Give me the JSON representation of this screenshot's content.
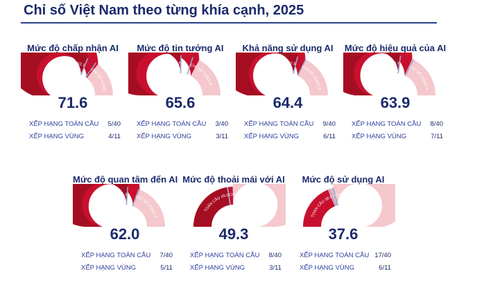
{
  "page_title": "Chỉ số Việt Nam theo từng khía cạnh, 2025",
  "colors": {
    "main": "#c8102e",
    "global": "#a50e22",
    "regional_light": "#f0b6bd",
    "remainder": "#f4c8cd",
    "text": "#1b2a6b",
    "marker": "#9aa3cf"
  },
  "chart_data": [
    {
      "type": "gauge",
      "title": "Mức độ chấp nhận AI",
      "value": 71.6,
      "global_index_label": "CHỈ SỐ TOÀN CẦU",
      "global_index": 62.1,
      "regional_index_label": "CHỈ SỐ VÙNG",
      "regional_index": 69.6,
      "global_rank_label": "XẾP HẠNG TOÀN CẦU",
      "global_rank": "5/40",
      "regional_rank_label": "XẾP HẠNG VÙNG",
      "regional_rank": "4/11",
      "ylim": [
        0,
        100
      ]
    },
    {
      "type": "gauge",
      "title": "Mức độ tin tưởng AI",
      "value": 65.6,
      "global_index_label": "CHỈ SỐ TOÀN CẦU",
      "global_index": 50.5,
      "regional_index_label": "CHỈ SỐ VÙNG",
      "regional_index": 60.1,
      "global_rank_label": "XẾP HẠNG TOÀN CẦU",
      "global_rank": "3/40",
      "regional_rank_label": "XẾP HẠNG VÙNG",
      "regional_rank": "3/11",
      "ylim": [
        0,
        100
      ]
    },
    {
      "type": "gauge",
      "title": "Khả năng sử dụng AI",
      "value": 64.4,
      "global_index_label": "CHỈ SỐ TOÀN CẦU",
      "global_index": 57.9,
      "regional_index_label": "CHỈ SỐ VÙNG",
      "regional_index": 64.7,
      "global_rank_label": "XẾP HẠNG TOÀN CẦU",
      "global_rank": "9/40",
      "regional_rank_label": "XẾP HẠNG VÙNG",
      "regional_rank": "6/11",
      "ylim": [
        0,
        100
      ]
    },
    {
      "type": "gauge",
      "title": "Mức độ hiệu quả của AI",
      "value": 63.9,
      "global_index_label": "CHỈ SỐ TOÀN CẦU",
      "global_index": 54.2,
      "regional_index_label": "CHỈ SỐ VÙNG",
      "regional_index": 64.9,
      "global_rank_label": "XẾP HẠNG TOÀN CẦU",
      "global_rank": "8/40",
      "regional_rank_label": "XẾP HẠNG VÙNG",
      "regional_rank": "7/11",
      "ylim": [
        0,
        100
      ]
    },
    {
      "type": "gauge",
      "title": "Mức độ quan tâm đến AI",
      "value": 62.0,
      "global_index_label": "CHỈ SỐ TOÀN CẦU",
      "global_index": 52.3,
      "regional_index_label": "CHỈ SỐ VÙNG",
      "regional_index": 61.3,
      "global_rank_label": "XẾP HẠNG TOÀN CẦU",
      "global_rank": "7/40",
      "regional_rank_label": "XẾP HẠNG VÙNG",
      "regional_rank": "5/11",
      "ylim": [
        0,
        100
      ]
    },
    {
      "type": "gauge",
      "title": "Mức độ thoải mái với AI",
      "value": 49.3,
      "global_index_label": "CHỈ SỐ TOÀN CẦU",
      "global_index": 45.0,
      "regional_index_label": "CHỈ SỐ VÙNG",
      "regional_index": 45.1,
      "global_rank_label": "XẾP HẠNG TOÀN CẦU",
      "global_rank": "8/40",
      "regional_rank_label": "XẾP HẠNG VÙNG",
      "regional_rank": "3/11",
      "ylim": [
        0,
        100
      ]
    },
    {
      "type": "gauge",
      "title": "Mức độ sử dụng AI",
      "value": 37.6,
      "global_index_label": "CHỈ SỐ TOÀN CẦU",
      "global_index": 38.8,
      "regional_index_label": "CHỈ SỐ VÙNG",
      "regional_index": 41.9,
      "global_rank_label": "XẾP HẠNG TOÀN CẦU",
      "global_rank": "17/40",
      "regional_rank_label": "XẾP HẠNG VÙNG",
      "regional_rank": "6/11",
      "ylim": [
        0,
        100
      ]
    }
  ]
}
